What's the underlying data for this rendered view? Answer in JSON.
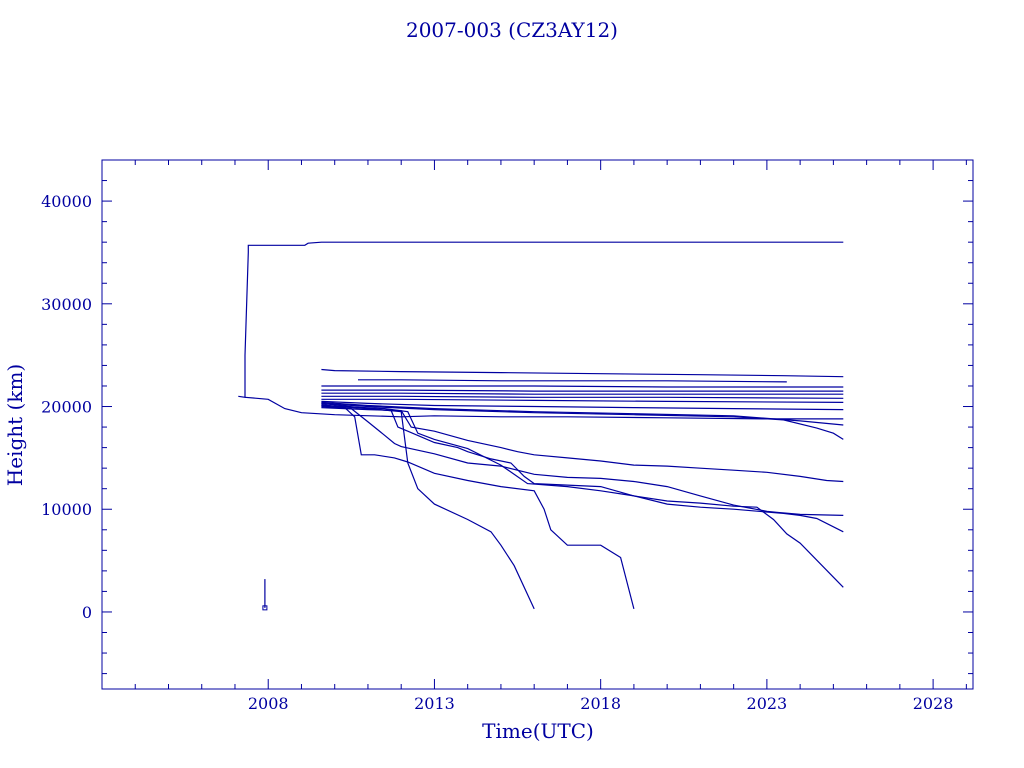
{
  "chart_data": {
    "type": "line",
    "title": "2007-003 (CZ3AY12)",
    "xlabel": "Time(UTC)",
    "ylabel": "Height (km)",
    "xlim": [
      2003.0,
      2029.2
    ],
    "ylim": [
      -7500,
      44000
    ],
    "x_ticks": [
      2008,
      2013,
      2018,
      2023,
      2028
    ],
    "y_ticks": [
      0,
      10000,
      20000,
      30000,
      40000
    ],
    "grid": false,
    "color": "#0000a0",
    "series": [
      {
        "x": [
          2007.1,
          2007.3,
          2007.3,
          2007.4,
          2007.4,
          2009.1,
          2009.2,
          2009.6,
          2009.7,
          2025.3
        ],
        "y": [
          21000,
          20900,
          25000,
          35000,
          35700,
          35700,
          35900,
          36000,
          36000,
          36000
        ]
      },
      {
        "x": [
          2007.3,
          2008.0,
          2008.5,
          2009.0,
          2010.0,
          2012.0,
          2013.0,
          2015.0,
          2017.0,
          2020.0,
          2023.0,
          2025.3
        ],
        "y": [
          20900,
          20700,
          19800,
          19400,
          19200,
          19000,
          19100,
          19000,
          19000,
          18900,
          18800,
          18800
        ]
      },
      {
        "x": [
          2007.9,
          2007.9,
          2007.9,
          2007.9
        ],
        "y": [
          3200,
          1800,
          600,
          400
        ]
      },
      {
        "x": [
          2009.6,
          2010.0,
          2012.0,
          2015.0,
          2018.0,
          2021.0,
          2023.5,
          2025.3
        ],
        "y": [
          23600,
          23500,
          23400,
          23300,
          23200,
          23100,
          23000,
          22900
        ]
      },
      {
        "x": [
          2010.7,
          2012.0,
          2015.0,
          2020.0,
          2023.6
        ],
        "y": [
          22600,
          22600,
          22500,
          22500,
          22400
        ]
      },
      {
        "x": [
          2009.6,
          2012.0,
          2016.0,
          2020.0,
          2025.3
        ],
        "y": [
          22000,
          22000,
          22000,
          21900,
          21900
        ]
      },
      {
        "x": [
          2009.6,
          2012.0,
          2016.0,
          2020.0,
          2025.3
        ],
        "y": [
          21600,
          21600,
          21500,
          21500,
          21500
        ]
      },
      {
        "x": [
          2009.6,
          2012.0,
          2016.0,
          2020.0,
          2025.3
        ],
        "y": [
          21300,
          21300,
          21200,
          21200,
          21200
        ]
      },
      {
        "x": [
          2009.6,
          2012.0,
          2016.0,
          2020.0,
          2025.3
        ],
        "y": [
          21000,
          21000,
          20900,
          20900,
          20800
        ]
      },
      {
        "x": [
          2009.6,
          2012.0,
          2016.0,
          2020.0,
          2025.3
        ],
        "y": [
          20700,
          20700,
          20600,
          20500,
          20400
        ]
      },
      {
        "x": [
          2009.6,
          2011.0,
          2013.0,
          2016.0,
          2019.0,
          2022.0,
          2025.3
        ],
        "y": [
          20500,
          20300,
          20100,
          20000,
          19900,
          19800,
          19700
        ]
      },
      {
        "x": [
          2009.6,
          2011.0,
          2013.0,
          2016.0,
          2019.0,
          2022.0,
          2024.0,
          2025.3
        ],
        "y": [
          20400,
          20100,
          19800,
          19500,
          19300,
          19100,
          18600,
          18200
        ]
      },
      {
        "x": [
          2009.6,
          2011.0,
          2013.0,
          2016.0,
          2019.0,
          2022.0,
          2023.5,
          2024.5,
          2025.0,
          2025.3
        ],
        "y": [
          20300,
          20000,
          19700,
          19400,
          19200,
          19000,
          18700,
          17900,
          17400,
          16800
        ]
      },
      {
        "x": [
          2009.6,
          2010.3,
          2010.6,
          2010.8,
          2011.2,
          2011.8,
          2012.2,
          2013.0,
          2014.0,
          2015.0,
          2016.0,
          2016.3,
          2016.5,
          2017.0,
          2018.0,
          2018.6,
          2019.0
        ],
        "y": [
          20200,
          19900,
          19000,
          15300,
          15300,
          15000,
          14600,
          13500,
          12800,
          12200,
          11800,
          10000,
          8000,
          6500,
          6500,
          5300,
          300
        ]
      },
      {
        "x": [
          2009.6,
          2011.0,
          2012.0,
          2012.2,
          2012.5,
          2013.0,
          2014.0,
          2014.7,
          2015.0,
          2015.4,
          2016.0
        ],
        "y": [
          20300,
          19800,
          19500,
          14500,
          12000,
          10500,
          9000,
          7800,
          6500,
          4500,
          300
        ]
      },
      {
        "x": [
          2009.6,
          2011.0,
          2011.7,
          2011.9,
          2012.2,
          2013.0,
          2013.7,
          2014.0,
          2014.7,
          2015.3,
          2015.7,
          2016.0,
          2018.0,
          2019.0,
          2020.0,
          2021.0,
          2022.0,
          2023.5,
          2024.0,
          2024.5,
          2025.3
        ],
        "y": [
          20100,
          19800,
          19600,
          18000,
          17600,
          16500,
          16000,
          15600,
          14900,
          14500,
          13200,
          12500,
          12200,
          11300,
          10500,
          10200,
          10000,
          9600,
          9400,
          9100,
          7800
        ]
      },
      {
        "x": [
          2009.6,
          2010.5,
          2011.0,
          2011.5,
          2011.8,
          2012.0,
          2013.0,
          2014.0,
          2015.0,
          2016.0,
          2017.0,
          2018.0,
          2019.0,
          2020.0,
          2021.0,
          2022.0,
          2023.0,
          2023.3,
          2024.0,
          2025.3
        ],
        "y": [
          20000,
          19800,
          18500,
          17200,
          16400,
          16100,
          15400,
          14500,
          14200,
          13400,
          13100,
          13000,
          12700,
          12200,
          11300,
          10400,
          9800,
          9700,
          9500,
          9400
        ]
      },
      {
        "x": [
          2009.6,
          2011.0,
          2012.0,
          2012.3,
          2013.0,
          2014.0,
          2015.0,
          2015.5,
          2016.0,
          2017.0,
          2018.0,
          2019.0,
          2020.0,
          2021.0,
          2022.0,
          2023.0,
          2024.0,
          2024.8,
          2025.3
        ],
        "y": [
          19900,
          19700,
          19600,
          18000,
          17600,
          16700,
          16000,
          15600,
          15300,
          15000,
          14700,
          14300,
          14200,
          14000,
          13800,
          13600,
          13200,
          12800,
          12700
        ]
      },
      {
        "x": [
          2009.6,
          2011.5,
          2012.2,
          2012.5,
          2013.0,
          2014.0,
          2015.0,
          2015.8,
          2017.0,
          2018.0,
          2019.0,
          2020.0,
          2021.0,
          2022.0,
          2022.7,
          2023.2,
          2023.6,
          2024.0,
          2025.3
        ],
        "y": [
          20100,
          19800,
          19500,
          17400,
          16800,
          15900,
          14300,
          12500,
          12200,
          11800,
          11300,
          10800,
          10600,
          10300,
          10200,
          9000,
          7600,
          6700,
          2400
        ]
      }
    ]
  }
}
